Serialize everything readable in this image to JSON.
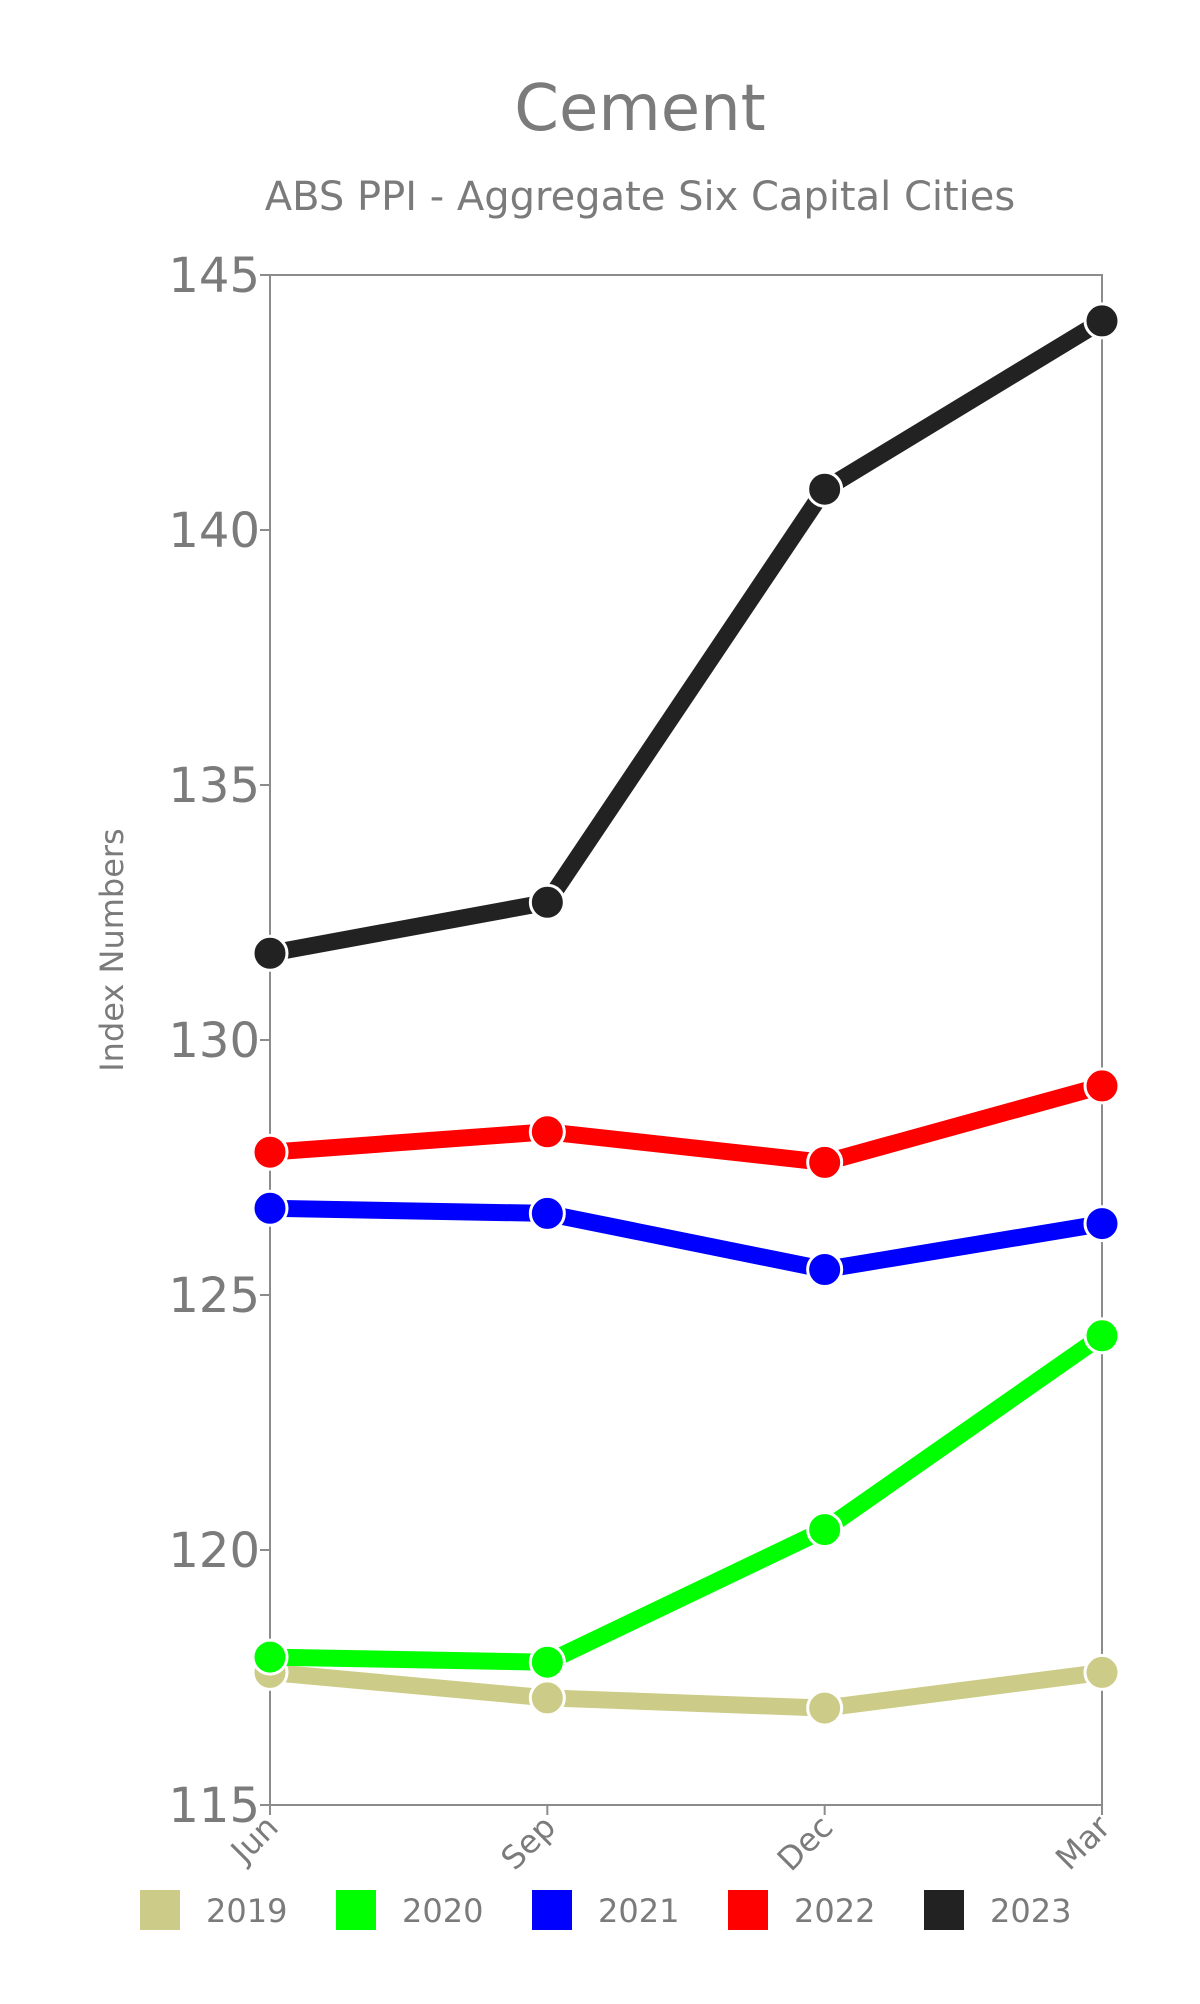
{
  "chart_data": {
    "type": "line",
    "title": "Cement",
    "subtitle": "ABS PPI - Aggregate Six Capital Cities",
    "xlabel": "",
    "ylabel": "Index Numbers",
    "categories": [
      "Jun",
      "Sep",
      "Dec",
      "Mar"
    ],
    "ylim": [
      115,
      145
    ],
    "yticks": [
      "115",
      "120",
      "125",
      "130",
      "135",
      "140",
      "145"
    ],
    "grid": false,
    "legend_position": "bottom",
    "series": [
      {
        "name": "2019",
        "color": "#cccc88",
        "values": [
          117.6,
          117.1,
          116.9,
          117.6
        ]
      },
      {
        "name": "2020",
        "color": "#00ff00",
        "values": [
          117.9,
          117.8,
          120.4,
          124.2
        ]
      },
      {
        "name": "2021",
        "color": "#0000ff",
        "values": [
          126.7,
          126.6,
          125.5,
          126.4
        ]
      },
      {
        "name": "2022",
        "color": "#ff0000",
        "values": [
          127.8,
          128.2,
          127.6,
          129.1
        ]
      },
      {
        "name": "2023",
        "color": "#222222",
        "values": [
          131.7,
          132.7,
          140.8,
          144.1
        ]
      }
    ]
  }
}
